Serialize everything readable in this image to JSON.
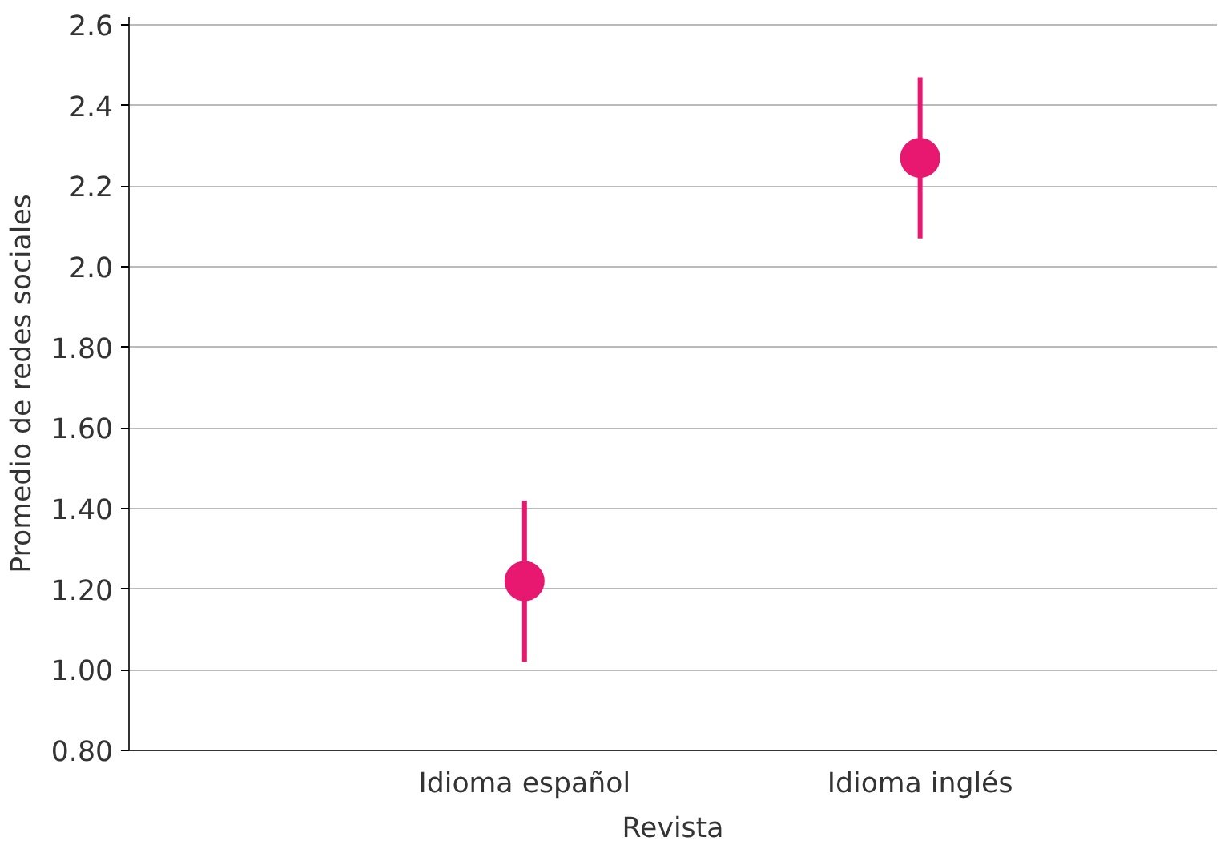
{
  "chart_data": {
    "type": "scatter",
    "xlabel": "Revista",
    "ylabel": "Promedio de redes sociales",
    "categories": [
      "Idioma español",
      "Idioma inglés"
    ],
    "series": [
      {
        "color": "#e8176f",
        "values": [
          1.22,
          2.27
        ],
        "errors": [
          0.2,
          0.2
        ]
      }
    ],
    "ylim": [
      0.8,
      2.62
    ],
    "yticks": [
      {
        "value": 0.8,
        "label": "0.80"
      },
      {
        "value": 1.0,
        "label": "1.00"
      },
      {
        "value": 1.2,
        "label": "1.20"
      },
      {
        "value": 1.4,
        "label": "1.40"
      },
      {
        "value": 1.6,
        "label": "1.60"
      },
      {
        "value": 1.8,
        "label": "1.80"
      },
      {
        "value": 2.0,
        "label": "2.0"
      },
      {
        "value": 2.2,
        "label": "2.2"
      },
      {
        "value": 2.4,
        "label": "2.4"
      },
      {
        "value": 2.6,
        "label": "2.6"
      }
    ],
    "grid": "y",
    "marker": "circle"
  }
}
